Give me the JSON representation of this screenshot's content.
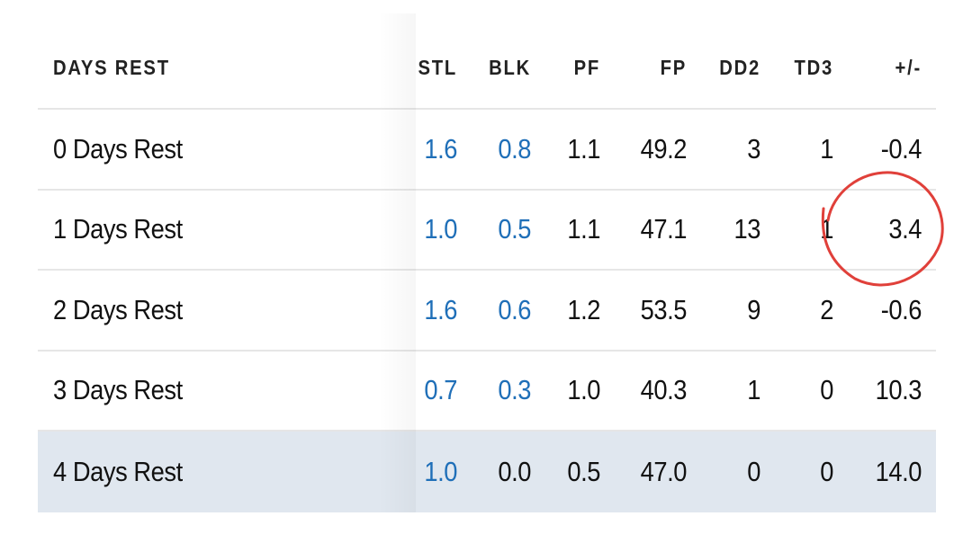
{
  "columns": [
    "DAYS REST",
    "STL",
    "BLK",
    "PF",
    "FP",
    "DD2",
    "TD3",
    "+/-"
  ],
  "rows": [
    {
      "label": "0 Days Rest",
      "stl": "1.6",
      "blk": "0.8",
      "pf": "1.1",
      "fp": "49.2",
      "dd2": "3",
      "td3": "1",
      "pm": "-0.4"
    },
    {
      "label": "1 Days Rest",
      "stl": "1.0",
      "blk": "0.5",
      "pf": "1.1",
      "fp": "47.1",
      "dd2": "13",
      "td3": "1",
      "pm": "3.4"
    },
    {
      "label": "2 Days Rest",
      "stl": "1.6",
      "blk": "0.6",
      "pf": "1.2",
      "fp": "53.5",
      "dd2": "9",
      "td3": "2",
      "pm": "-0.6"
    },
    {
      "label": "3 Days Rest",
      "stl": "0.7",
      "blk": "0.3",
      "pf": "1.0",
      "fp": "40.3",
      "dd2": "1",
      "td3": "0",
      "pm": "10.3"
    },
    {
      "label": "4 Days Rest",
      "stl": "1.0",
      "blk": "0.0",
      "pf": "0.5",
      "fp": "47.0",
      "dd2": "0",
      "td3": "0",
      "pm": "14.0"
    }
  ],
  "colors": {
    "link": "#1f6fb8",
    "highlight": "#e0e7ef",
    "annotation": "#e0403a"
  }
}
